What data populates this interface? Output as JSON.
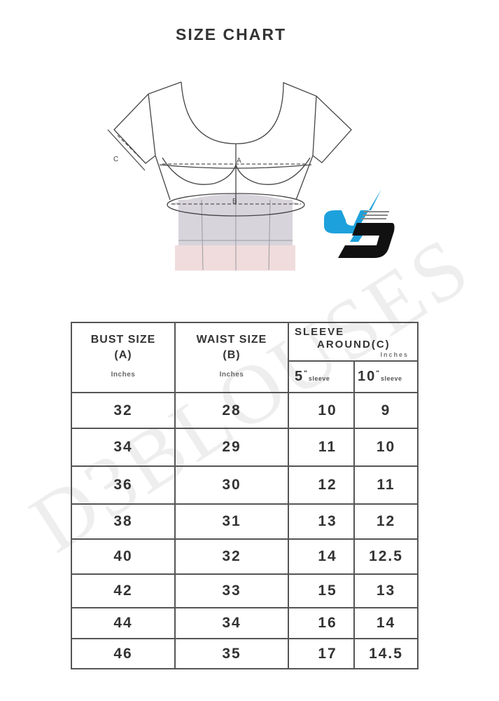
{
  "title": "SIZE CHART",
  "diagram": {
    "labels": {
      "bust": "A",
      "waist": "B",
      "sleeve": "C"
    },
    "colors": {
      "bodice_band": "#d8d4dc",
      "skirt": "#f0dcdc",
      "logo_blue": "#1da1dc",
      "logo_black": "#111111"
    }
  },
  "watermark": "D3BLOUSES",
  "table": {
    "headers": {
      "bust": {
        "label": "BUST SIZE",
        "sub": "(A)",
        "unit": "Inches"
      },
      "waist": {
        "label": "WAIST SIZE",
        "sub": "(B)",
        "unit": "Inches"
      },
      "sleeve": {
        "line1": "SLEEVE",
        "line2": "AROUND",
        "sub": "(C)",
        "unit": "Inches"
      },
      "sleeve_5": {
        "num": "5",
        "mark": "\"",
        "label": "sleeve"
      },
      "sleeve_10": {
        "num": "10",
        "mark": "\"",
        "label": "sleeve"
      }
    },
    "rows": [
      [
        "32",
        "28",
        "10",
        "9"
      ],
      [
        "34",
        "29",
        "11",
        "10"
      ],
      [
        "36",
        "30",
        "12",
        "11"
      ],
      [
        "38",
        "31",
        "13",
        "12"
      ],
      [
        "40",
        "32",
        "14",
        "12.5"
      ],
      [
        "42",
        "33",
        "15",
        "13"
      ],
      [
        "44",
        "34",
        "16",
        "14"
      ],
      [
        "46",
        "35",
        "17",
        "14.5"
      ]
    ]
  }
}
